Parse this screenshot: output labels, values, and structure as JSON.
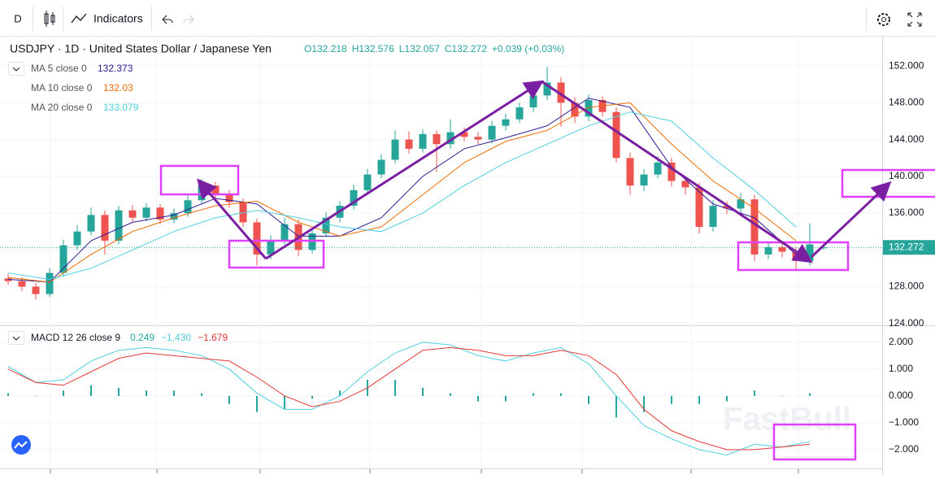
{
  "toolbar": {
    "interval": "D",
    "indicators": "Indicators"
  },
  "watermark": "FastBull",
  "chart_data": [
    {
      "type": "candlestick",
      "title": "USDJPY · 1D · United States Dollar / Japanese Yen",
      "ohlc": [
        "O132.218",
        "H132.576",
        "L132.057",
        "C132.272"
      ],
      "change": "+0.039 (+0.03%)",
      "up_color": "#26a69a",
      "down_color": "#ef5350",
      "candles": [
        [
          128.9,
          129.4,
          128.2,
          128.6
        ],
        [
          128.6,
          129.0,
          127.5,
          128.0
        ],
        [
          128.0,
          128.4,
          126.6,
          127.2
        ],
        [
          127.2,
          130.0,
          126.9,
          129.5
        ],
        [
          129.5,
          133.1,
          129.1,
          132.5
        ],
        [
          132.5,
          134.7,
          132.0,
          134.0
        ],
        [
          134.0,
          136.6,
          133.6,
          135.8
        ],
        [
          135.8,
          136.3,
          131.5,
          133.0
        ],
        [
          133.0,
          136.8,
          132.6,
          136.3
        ],
        [
          136.3,
          136.9,
          135.0,
          135.5
        ],
        [
          135.5,
          137.1,
          135.1,
          136.6
        ],
        [
          136.6,
          137.0,
          134.8,
          135.3
        ],
        [
          135.3,
          136.5,
          134.9,
          136.0
        ],
        [
          136.0,
          138.0,
          135.6,
          137.4
        ],
        [
          137.4,
          139.7,
          137.0,
          139.0
        ],
        [
          139.0,
          139.4,
          137.6,
          138.0
        ],
        [
          138.0,
          138.5,
          136.6,
          137.2
        ],
        [
          137.2,
          137.6,
          134.5,
          135.0
        ],
        [
          135.0,
          135.4,
          130.3,
          131.5
        ],
        [
          131.5,
          133.6,
          131.0,
          133.0
        ],
        [
          133.0,
          135.5,
          132.6,
          134.8
        ],
        [
          134.8,
          135.3,
          131.3,
          132.0
        ],
        [
          132.0,
          134.4,
          131.6,
          133.8
        ],
        [
          133.8,
          136.1,
          133.4,
          135.5
        ],
        [
          135.5,
          137.3,
          135.0,
          136.8
        ],
        [
          136.8,
          139.1,
          136.4,
          138.5
        ],
        [
          138.5,
          140.8,
          138.0,
          140.2
        ],
        [
          140.2,
          142.4,
          139.8,
          141.8
        ],
        [
          141.8,
          145.0,
          141.4,
          144.0
        ],
        [
          144.0,
          144.9,
          142.5,
          143.0
        ],
        [
          143.0,
          145.1,
          142.6,
          144.6
        ],
        [
          144.6,
          145.0,
          140.5,
          143.5
        ],
        [
          143.5,
          146.2,
          143.0,
          144.8
        ],
        [
          144.8,
          145.3,
          143.8,
          144.3
        ],
        [
          144.3,
          144.8,
          143.5,
          144.0
        ],
        [
          144.0,
          146.0,
          143.6,
          145.5
        ],
        [
          145.5,
          146.8,
          145.0,
          146.2
        ],
        [
          146.2,
          148.0,
          145.8,
          147.5
        ],
        [
          147.5,
          149.4,
          147.0,
          148.8
        ],
        [
          148.8,
          151.9,
          148.3,
          150.2
        ],
        [
          150.2,
          150.8,
          145.4,
          148.0
        ],
        [
          148.0,
          148.6,
          145.8,
          146.5
        ],
        [
          146.5,
          148.9,
          146.0,
          148.3
        ],
        [
          148.3,
          148.7,
          146.5,
          147.0
        ],
        [
          147.0,
          147.5,
          141.5,
          142.0
        ],
        [
          142.0,
          142.6,
          138.0,
          139.0
        ],
        [
          139.0,
          140.8,
          138.4,
          140.2
        ],
        [
          140.2,
          142.2,
          139.8,
          141.5
        ],
        [
          141.5,
          142.0,
          138.9,
          139.5
        ],
        [
          139.5,
          140.0,
          138.0,
          138.8
        ],
        [
          138.8,
          139.3,
          133.8,
          134.5
        ],
        [
          134.5,
          137.4,
          134.0,
          136.8
        ],
        [
          136.8,
          137.3,
          135.9,
          136.5
        ],
        [
          136.5,
          138.2,
          136.0,
          137.5
        ],
        [
          137.5,
          138.0,
          130.8,
          131.5
        ],
        [
          131.5,
          132.9,
          131.0,
          132.3
        ],
        [
          132.3,
          132.8,
          131.2,
          131.8
        ],
        [
          131.8,
          132.3,
          129.8,
          130.8
        ],
        [
          130.8,
          134.9,
          130.3,
          132.6
        ],
        [
          132.218,
          132.576,
          132.057,
          132.272
        ]
      ],
      "series": [
        {
          "name": "MA 5 close 0",
          "last_value": 132.373,
          "color": "#311b92",
          "values": [
            128.8,
            128.5,
            133.0,
            135.0,
            135.8,
            137.6,
            137.0,
            133.5,
            133.5,
            135.5,
            140.0,
            143.0,
            144.2,
            145.5,
            148.5,
            147.5,
            141.0,
            137.0,
            135.5,
            131.5
          ]
        },
        {
          "name": "MA 10 close 0",
          "last_value": 132.03,
          "color": "#ef6c00",
          "values": [
            129.0,
            128.5,
            131.5,
            134.0,
            135.5,
            136.8,
            137.3,
            135.0,
            133.5,
            134.5,
            138.0,
            141.5,
            143.8,
            145.0,
            147.5,
            148.0,
            143.5,
            139.5,
            136.5,
            133.0
          ]
        },
        {
          "name": "MA 20 close 0",
          "last_value": 133.079,
          "color": "#4dd0e1",
          "values": [
            129.5,
            128.8,
            130.0,
            132.0,
            134.0,
            135.5,
            136.3,
            135.5,
            134.5,
            134.0,
            136.0,
            139.0,
            141.5,
            143.5,
            145.5,
            147.0,
            146.0,
            142.0,
            138.5,
            134.5
          ]
        }
      ],
      "last_price": {
        "value": 132.272,
        "label": "132.272"
      },
      "ylim": [
        123.8,
        155.2
      ],
      "yticks": [
        {
          "value": 124,
          "label": "124.000"
        },
        {
          "value": 128,
          "label": "128.000"
        },
        {
          "value": 132,
          "label": "132.000"
        },
        {
          "value": 136,
          "label": "136.000"
        },
        {
          "value": 140,
          "label": "140.000"
        },
        {
          "value": 144,
          "label": "144.000"
        },
        {
          "value": 148,
          "label": "148.000"
        },
        {
          "value": 152,
          "label": "152.000"
        }
      ],
      "grid": true
    },
    {
      "type": "macd",
      "title": "MACD 12 26 close 9",
      "histogram": {
        "name": "0.249",
        "color": "#26a69a",
        "values": [
          0.1,
          0,
          0.2,
          0.4,
          0.3,
          0.2,
          0.2,
          0.1,
          -0.3,
          -0.6,
          -0.5,
          -0.1,
          0.2,
          0.6,
          0.6,
          0.3,
          0.1,
          -0.2,
          -0.2,
          0.1,
          0.1,
          -0.3,
          -0.8,
          -0.6,
          -0.3,
          -0.3,
          -0.2,
          0.2,
          0,
          0.1
        ]
      },
      "series": [
        {
          "name": "−1.430",
          "color": "#4dd0e1",
          "values": [
            1.1,
            0.5,
            0.6,
            1.3,
            1.7,
            1.8,
            1.7,
            1.5,
            1.0,
            0.1,
            -0.5,
            -0.5,
            0.0,
            0.9,
            1.6,
            2.0,
            1.9,
            1.5,
            1.3,
            1.6,
            1.8,
            1.2,
            0.0,
            -1.1,
            -1.6,
            -2.0,
            -2.2,
            -1.8,
            -1.9,
            -1.7
          ]
        },
        {
          "name": "−1.679",
          "color": "#e53935",
          "values": [
            1.0,
            0.5,
            0.4,
            0.9,
            1.4,
            1.6,
            1.5,
            1.4,
            1.3,
            0.7,
            0.0,
            -0.4,
            -0.2,
            0.3,
            1.0,
            1.7,
            1.8,
            1.7,
            1.5,
            1.5,
            1.7,
            1.5,
            0.8,
            -0.5,
            -1.3,
            -1.7,
            -2.0,
            -2.0,
            -1.9,
            -1.8
          ]
        }
      ],
      "ylim": [
        -2.7,
        2.6
      ],
      "yticks": [
        {
          "value": 2,
          "label": "2.000"
        },
        {
          "value": 1,
          "label": "1.000"
        },
        {
          "value": 0,
          "label": "0.000"
        },
        {
          "value": -1,
          "label": "−1.000"
        },
        {
          "value": -2,
          "label": "−2.000"
        }
      ],
      "grid": true
    }
  ]
}
